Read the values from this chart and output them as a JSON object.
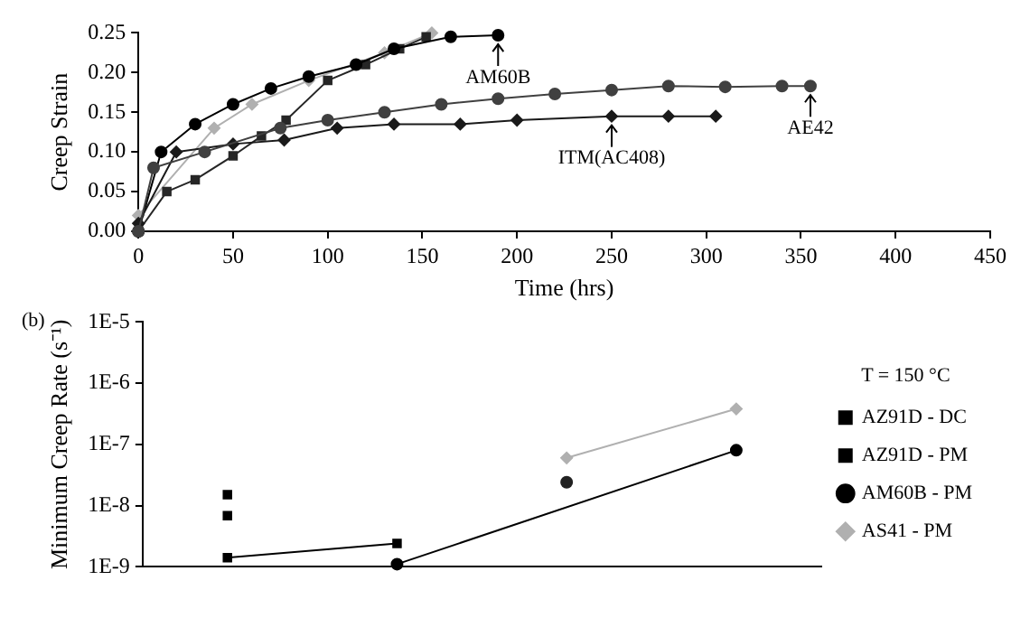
{
  "chart_data": [
    {
      "type": "line",
      "xlabel": "Time (hrs)",
      "ylabel": "Creep Strain",
      "xlim": [
        0,
        450
      ],
      "xticks": [
        0,
        50,
        100,
        150,
        200,
        250,
        300,
        350,
        400,
        450
      ],
      "ylim": [
        0,
        0.25
      ],
      "yticks": [
        {
          "value": 0,
          "label": "0.00"
        },
        {
          "value": 0.05,
          "label": "0.05"
        },
        {
          "value": 0.1,
          "label": "0.10"
        },
        {
          "value": 0.15,
          "label": "0.15"
        },
        {
          "value": 0.2,
          "label": "0.20"
        },
        {
          "value": 0.25,
          "label": "0.25"
        }
      ],
      "grid": false,
      "legend": false,
      "series": [
        {
          "color": "#404040",
          "marker": "circle",
          "x": [
            0,
            8,
            35,
            75,
            100,
            130,
            160,
            190,
            220,
            250,
            280,
            310,
            340,
            355
          ],
          "values": [
            0.0,
            0.08,
            0.1,
            0.13,
            0.14,
            0.15,
            0.16,
            0.167,
            0.173,
            0.178,
            0.183,
            0.182,
            0.183,
            0.183
          ]
        },
        {
          "color": "#1a1a1a",
          "marker": "diamond",
          "x": [
            0,
            20,
            50,
            77,
            105,
            135,
            170,
            200,
            250,
            280,
            305
          ],
          "values": [
            0.01,
            0.1,
            0.11,
            0.115,
            0.13,
            0.135,
            0.135,
            0.14,
            0.145,
            0.145,
            0.145
          ]
        },
        {
          "color": "#000000",
          "marker": "circle",
          "x": [
            0,
            12,
            30,
            50,
            70,
            90,
            115,
            135,
            165,
            190
          ],
          "values": [
            0.0,
            0.1,
            0.135,
            0.16,
            0.18,
            0.195,
            0.21,
            0.23,
            0.245,
            0.247
          ]
        },
        {
          "color": "#262626",
          "marker": "square",
          "x": [
            0,
            15,
            30,
            50,
            65,
            78,
            100,
            120,
            138,
            152
          ],
          "values": [
            0.0,
            0.05,
            0.065,
            0.095,
            0.12,
            0.14,
            0.19,
            0.21,
            0.23,
            0.245
          ]
        },
        {
          "color": "#b0b0b0",
          "marker": "diamond",
          "x": [
            0,
            40,
            60,
            90,
            130,
            155
          ],
          "values": [
            0.02,
            0.13,
            0.16,
            0.19,
            0.225,
            0.25
          ]
        }
      ],
      "annotations": [
        {
          "text": "AM60B",
          "x": 190,
          "y": 0.247
        },
        {
          "text": "AE42",
          "x": 355,
          "y": 0.183
        },
        {
          "text": "ITM(AC408)",
          "x": 250,
          "y": 0.145
        }
      ]
    },
    {
      "type": "line",
      "ylabel": "Minimum Creep Rate (s⁻¹)",
      "categories": [
        null,
        null,
        null,
        null
      ],
      "log": "y",
      "ylim": [
        1e-09,
        1e-05
      ],
      "yticks": [
        {
          "value": 1e-09,
          "label": "1E-9"
        },
        {
          "value": 1e-08,
          "label": "1E-8"
        },
        {
          "value": 1e-07,
          "label": "1E-7"
        },
        {
          "value": 1e-06,
          "label": "1E-6"
        },
        {
          "value": 1e-05,
          "label": "1E-5"
        }
      ],
      "grid": false,
      "legend": "right",
      "legend_title": "T = 150 °C",
      "series": [
        {
          "name": "AZ91D - DC",
          "type": "scatter",
          "color": "#000000",
          "marker": "square",
          "values": [
            1.5e-08,
            null,
            null,
            null
          ]
        },
        {
          "type": "scatter",
          "color": "#000000",
          "marker": "square",
          "values": [
            6.8e-09,
            null,
            null,
            null
          ]
        },
        {
          "name": "AZ91D - PM",
          "color": "#000000",
          "marker": "square",
          "values": [
            1.4e-09,
            2.4e-09,
            null,
            null
          ]
        },
        {
          "name": "AM60B - PM",
          "color": "#000000",
          "marker": "circle",
          "values": [
            null,
            1.1e-09,
            null,
            8e-08
          ]
        },
        {
          "type": "scatter",
          "color": "#222222",
          "marker": "circle",
          "values": [
            null,
            null,
            2.4e-08,
            null
          ]
        },
        {
          "name": "AS41 - PM",
          "color": "#b0b0b0",
          "marker": "diamond",
          "values": [
            null,
            null,
            6e-08,
            3.8e-07
          ]
        }
      ],
      "annotations": [
        "(b)"
      ]
    }
  ]
}
